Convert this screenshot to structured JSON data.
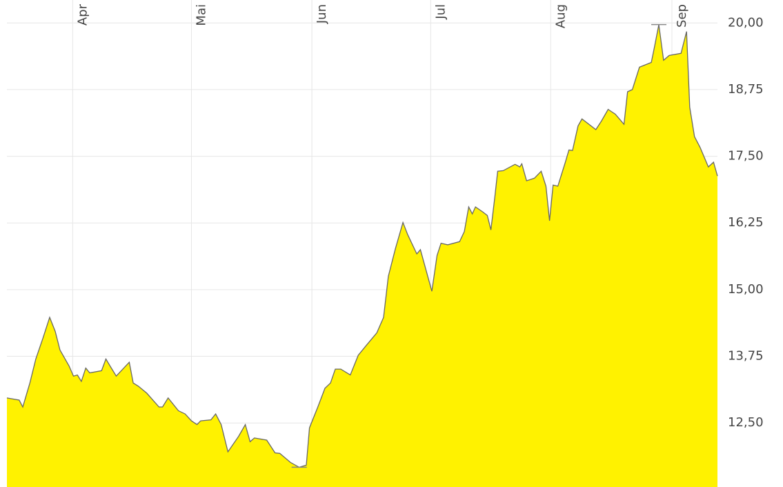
{
  "chart_data": {
    "type": "area",
    "color": "#fff200",
    "line_color": "#666666",
    "grid": true,
    "x": [
      0.0,
      3.1,
      4.0,
      5.8,
      7.3,
      9.1,
      10.8,
      12.2,
      13.4,
      15.7,
      16.8,
      17.8,
      18.8,
      19.9,
      20.9,
      23.9,
      25.0,
      26.2,
      27.6,
      30.9,
      31.9,
      33.2,
      35.3,
      38.4,
      39.3,
      40.7,
      43.3,
      45.0,
      46.6,
      48.0,
      48.9,
      51.5,
      52.7,
      54.1,
      55.8,
      58.5,
      60.2,
      61.4,
      62.5,
      65.6,
      67.7,
      68.9,
      71.6,
      73.8,
      75.6,
      76.4,
      78.5,
      80.3,
      81.7,
      82.9,
      84.3,
      86.7,
      88.7,
      90.8,
      93.4,
      95.1,
      96.3,
      98.1,
      100.0,
      101.2,
      103.5,
      104.4,
      107.3,
      108.6,
      109.6,
      111.3,
      114.3,
      115.5,
      116.6,
      117.5,
      118.3,
      120.1,
      121.3,
      122.2,
      123.2,
      123.9,
      125.3,
      128.3,
      129.5,
      130.0,
      131.2,
      133.2,
      134.9,
      136.1,
      137.0,
      137.9,
      139.1,
      141.0,
      141.9,
      142.8,
      144.2,
      145.2,
      148.7,
      150.1,
      151.8,
      153.6,
      155.8,
      156.7,
      157.9,
      159.7,
      162.7,
      163.5,
      164.6,
      165.8,
      167.2,
      170.2,
      171.6,
      172.4,
      173.6,
      175.0,
      177.1,
      178.4,
      179.4
    ],
    "values": [
      12.97,
      12.93,
      12.8,
      13.25,
      13.7,
      14.09,
      14.48,
      14.22,
      13.87,
      13.57,
      13.38,
      13.4,
      13.28,
      13.53,
      13.44,
      13.48,
      13.7,
      13.55,
      13.38,
      13.64,
      13.25,
      13.19,
      13.06,
      12.8,
      12.8,
      12.97,
      12.73,
      12.67,
      12.54,
      12.47,
      12.54,
      12.56,
      12.67,
      12.47,
      11.96,
      12.25,
      12.47,
      12.15,
      12.22,
      12.18,
      11.94,
      11.93,
      11.76,
      11.67,
      11.71,
      12.41,
      12.8,
      13.15,
      13.25,
      13.51,
      13.51,
      13.4,
      13.77,
      13.96,
      14.19,
      14.48,
      15.25,
      15.77,
      16.26,
      16.03,
      15.67,
      15.75,
      14.97,
      15.64,
      15.87,
      15.84,
      15.9,
      16.09,
      16.55,
      16.42,
      16.55,
      16.46,
      16.39,
      16.12,
      16.74,
      17.22,
      17.23,
      17.35,
      17.3,
      17.36,
      17.04,
      17.09,
      17.22,
      16.94,
      16.29,
      16.96,
      16.94,
      17.39,
      17.62,
      17.61,
      18.07,
      18.2,
      18.0,
      18.16,
      18.38,
      18.29,
      18.1,
      18.71,
      18.75,
      19.17,
      19.26,
      19.55,
      19.97,
      19.3,
      19.39,
      19.43,
      19.84,
      18.42,
      17.87,
      17.67,
      17.3,
      17.39,
      17.13
    ],
    "xlim": [
      0,
      179.4
    ],
    "xticks": [
      {
        "value": 16.6,
        "label": "Apr"
      },
      {
        "value": 46.6,
        "label": "Mai"
      },
      {
        "value": 77.0,
        "label": "Jun"
      },
      {
        "value": 107.0,
        "label": "Jul"
      },
      {
        "value": 137.3,
        "label": "Aug"
      },
      {
        "value": 167.9,
        "label": "Sep"
      }
    ],
    "ylim": [
      11.3,
      20.43
    ],
    "yticks": [
      {
        "value": 12.5,
        "label": "12,50"
      },
      {
        "value": 13.75,
        "label": "13,75"
      },
      {
        "value": 15,
        "label": "15,00"
      },
      {
        "value": 16.25,
        "label": "16,25"
      },
      {
        "value": 17.5,
        "label": "17,50"
      },
      {
        "value": 18.75,
        "label": "18,75"
      },
      {
        "value": 20,
        "label": "20,00"
      }
    ]
  }
}
